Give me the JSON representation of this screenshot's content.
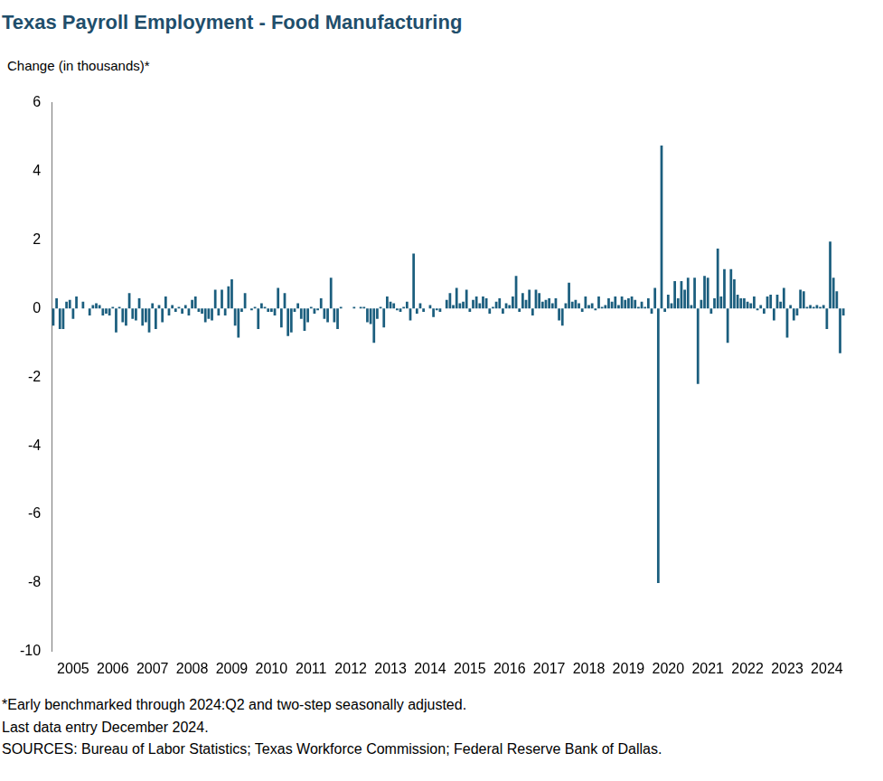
{
  "chart_data": {
    "type": "bar",
    "title": "Texas Payroll Employment - Food Manufacturing",
    "y_label": "Change (in thousands)*",
    "footnotes": [
      "*Early benchmarked through 2024:Q2 and two-step seasonally adjusted.",
      "Last data entry December 2024.",
      "SOURCES: Bureau of Labor Statistics; Texas Workforce Commission; Federal Reserve Bank of Dallas."
    ],
    "categories": [
      null,
      null,
      null,
      null,
      null,
      null,
      "2005",
      null,
      null,
      null,
      null,
      null,
      null,
      null,
      null,
      null,
      null,
      null,
      "2006",
      null,
      null,
      null,
      null,
      null,
      null,
      null,
      null,
      null,
      null,
      null,
      "2007",
      null,
      null,
      null,
      null,
      null,
      null,
      null,
      null,
      null,
      null,
      null,
      "2008",
      null,
      null,
      null,
      null,
      null,
      null,
      null,
      null,
      null,
      null,
      null,
      "2009",
      null,
      null,
      null,
      null,
      null,
      null,
      null,
      null,
      null,
      null,
      null,
      "2010",
      null,
      null,
      null,
      null,
      null,
      null,
      null,
      null,
      null,
      null,
      null,
      "2011",
      null,
      null,
      null,
      null,
      null,
      null,
      null,
      null,
      null,
      null,
      null,
      "2012",
      null,
      null,
      null,
      null,
      null,
      null,
      null,
      null,
      null,
      null,
      null,
      "2013",
      null,
      null,
      null,
      null,
      null,
      null,
      null,
      null,
      null,
      null,
      null,
      "2014",
      null,
      null,
      null,
      null,
      null,
      null,
      null,
      null,
      null,
      null,
      null,
      "2015",
      null,
      null,
      null,
      null,
      null,
      null,
      null,
      null,
      null,
      null,
      null,
      "2016",
      null,
      null,
      null,
      null,
      null,
      null,
      null,
      null,
      null,
      null,
      null,
      "2017",
      null,
      null,
      null,
      null,
      null,
      null,
      null,
      null,
      null,
      null,
      null,
      "2018",
      null,
      null,
      null,
      null,
      null,
      null,
      null,
      null,
      null,
      null,
      null,
      "2019",
      null,
      null,
      null,
      null,
      null,
      null,
      null,
      null,
      null,
      null,
      null,
      "2020",
      null,
      null,
      null,
      null,
      null,
      null,
      null,
      null,
      null,
      null,
      null,
      "2021",
      null,
      null,
      null,
      null,
      null,
      null,
      null,
      null,
      null,
      null,
      null,
      "2022",
      null,
      null,
      null,
      null,
      null,
      null,
      null,
      null,
      null,
      null,
      null,
      "2023",
      null,
      null,
      null,
      null,
      null,
      null,
      null,
      null,
      null,
      null,
      null,
      "2024",
      null,
      null,
      null,
      null,
      null
    ],
    "values": [
      -0.5,
      0.3,
      -0.6,
      -0.6,
      0.2,
      0.25,
      -0.3,
      0.35,
      0,
      0.2,
      0,
      -0.2,
      0.1,
      0.15,
      0.1,
      -0.2,
      -0.15,
      -0.2,
      0.05,
      -0.7,
      0.05,
      -0.4,
      -0.5,
      0.45,
      -0.3,
      -0.35,
      0.3,
      -0.5,
      -0.4,
      -0.7,
      0.15,
      -0.6,
      0.1,
      -0.4,
      0.35,
      -0.2,
      0.1,
      -0.1,
      0.05,
      -0.15,
      0.1,
      -0.2,
      0.25,
      0.35,
      -0.1,
      -0.15,
      -0.4,
      -0.3,
      -0.35,
      0.55,
      -0.2,
      0.55,
      -0.2,
      0.65,
      0.85,
      -0.5,
      -0.85,
      -0.1,
      0.45,
      0,
      -0.05,
      0.05,
      -0.6,
      0.15,
      0.05,
      -0.1,
      -0.1,
      -0.2,
      0.6,
      -0.55,
      0.45,
      -0.8,
      -0.7,
      -0.1,
      0.15,
      -0.3,
      -0.65,
      -0.4,
      0.05,
      -0.15,
      -0.05,
      0.3,
      -0.3,
      -0.4,
      0.9,
      -0.4,
      -0.6,
      0.05,
      0,
      0,
      0,
      0.05,
      0,
      0.05,
      0.05,
      -0.4,
      -0.45,
      -1.0,
      -0.3,
      0.05,
      -0.55,
      0.35,
      0.2,
      0.15,
      -0.05,
      -0.1,
      0.05,
      0.2,
      -0.35,
      1.6,
      -0.15,
      0.15,
      -0.1,
      0,
      0.1,
      -0.25,
      -0.05,
      -0.1,
      0,
      0.25,
      0.45,
      0.1,
      0.6,
      0.15,
      0.2,
      0.55,
      -0.1,
      0.25,
      0.35,
      0.15,
      0.35,
      0.3,
      -0.15,
      0.05,
      0.2,
      0.3,
      -0.15,
      0.15,
      0.1,
      0.35,
      0.95,
      -0.1,
      0.45,
      0.25,
      0.55,
      -0.2,
      0.55,
      0.45,
      0.2,
      0.25,
      0.3,
      0.15,
      0.3,
      -0.35,
      -0.5,
      0.15,
      0.75,
      0.2,
      0.25,
      0.15,
      -0.1,
      0.35,
      0.1,
      0.15,
      -0.05,
      0.35,
      0.05,
      0.1,
      0.3,
      0.2,
      0.35,
      0.1,
      0.35,
      0.25,
      0.3,
      0.35,
      0.25,
      0.05,
      0.2,
      0.05,
      0.3,
      -0.15,
      0.6,
      -8,
      4.75,
      -0.1,
      0.4,
      0.15,
      0.8,
      0.3,
      0.8,
      0.55,
      0.9,
      0.1,
      0.9,
      -2.2,
      0.25,
      0.95,
      0.9,
      -0.15,
      0.3,
      1.75,
      0.35,
      1.15,
      -1.0,
      1.15,
      0.85,
      0.4,
      0.3,
      0.3,
      0.2,
      0.15,
      0.35,
      -0.05,
      0.1,
      -0.15,
      0.35,
      0.4,
      -0.35,
      0.4,
      0.2,
      0.6,
      -0.85,
      0.1,
      -0.35,
      -0.2,
      0.55,
      0.5,
      0.05,
      0.1,
      0.05,
      0.1,
      0.05,
      0.1,
      -0.6,
      1.95,
      0.9,
      0.5,
      -1.3,
      -0.2
    ],
    "color": "#1b5e7e",
    "ylim": [
      -10,
      6
    ],
    "yticks": [
      -10,
      -8,
      -6,
      -4,
      -2,
      0,
      2,
      4,
      6
    ],
    "grid": false
  }
}
